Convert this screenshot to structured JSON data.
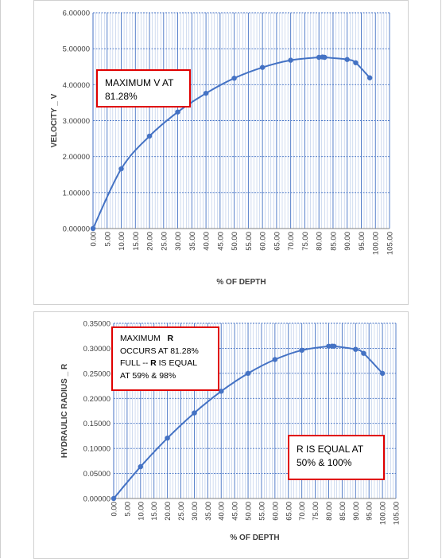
{
  "chart_data": [
    {
      "type": "scatter",
      "title": "",
      "xlabel": "% OF DEPTH",
      "ylabel": "VELOCITY _ V",
      "xlim": [
        0,
        105
      ],
      "ylim": [
        0,
        6
      ],
      "x_ticks": [
        "0.00",
        "5.00",
        "10.00",
        "15.00",
        "20.00",
        "25.00",
        "30.00",
        "35.00",
        "40.00",
        "45.00",
        "50.00",
        "55.00",
        "60.00",
        "65.00",
        "70.00",
        "75.00",
        "80.00",
        "85.00",
        "90.00",
        "95.00",
        "100.00",
        "105.00"
      ],
      "y_ticks": [
        "0.00000",
        "1.00000",
        "2.00000",
        "3.00000",
        "4.00000",
        "5.00000",
        "6.00000"
      ],
      "grid": true,
      "series": [
        {
          "x": [
            0,
            10,
            20,
            30,
            40,
            50,
            60,
            70,
            80,
            81.28,
            82,
            90,
            93,
            98
          ],
          "y": [
            0,
            1.66,
            2.57,
            3.24,
            3.76,
            4.18,
            4.48,
            4.68,
            4.76,
            4.77,
            4.76,
            4.7,
            4.61,
            4.19
          ]
        }
      ],
      "annotations": [
        {
          "lines": [
            "MAXIMUM V AT",
            "81.28%"
          ]
        }
      ]
    },
    {
      "type": "scatter",
      "title": "",
      "xlabel": "% OF DEPTH",
      "ylabel": "HYDRAULIC RADIUS _ R",
      "xlim": [
        0,
        105
      ],
      "ylim": [
        0,
        0.35
      ],
      "x_ticks": [
        "0.00",
        "5.00",
        "10.00",
        "15.00",
        "20.00",
        "25.00",
        "30.00",
        "35.00",
        "40.00",
        "45.00",
        "50.00",
        "55.00",
        "60.00",
        "65.00",
        "70.00",
        "75.00",
        "80.00",
        "85.00",
        "90.00",
        "95.00",
        "100.00",
        "105.00"
      ],
      "y_ticks": [
        "0.00000",
        "0.05000",
        "0.10000",
        "0.15000",
        "0.20000",
        "0.25000",
        "0.30000",
        "0.35000"
      ],
      "grid": true,
      "series": [
        {
          "x": [
            0,
            10,
            20,
            30,
            40,
            50,
            60,
            70,
            80,
            81.28,
            82,
            90,
            93,
            100
          ],
          "y": [
            0,
            0.0635,
            0.1206,
            0.1709,
            0.2142,
            0.25,
            0.2776,
            0.2962,
            0.3042,
            0.3043,
            0.3042,
            0.298,
            0.29,
            0.25
          ]
        }
      ],
      "annotations": [
        {
          "prefix": "MAXIMUM",
          "bold": "R",
          "lines": [
            "OCCURS AT 81.28%"
          ],
          "full_prefix": "FULL --",
          "full_bold": "R",
          "full_suffix": "IS EQUAL",
          "last": "AT 59% & 98%"
        },
        {
          "lines": [
            "R IS EQUAL AT",
            "50% & 100%"
          ]
        }
      ]
    }
  ],
  "colors": {
    "series": "#4472c4",
    "grid": "#4472c4",
    "callout_border": "#e00000"
  }
}
